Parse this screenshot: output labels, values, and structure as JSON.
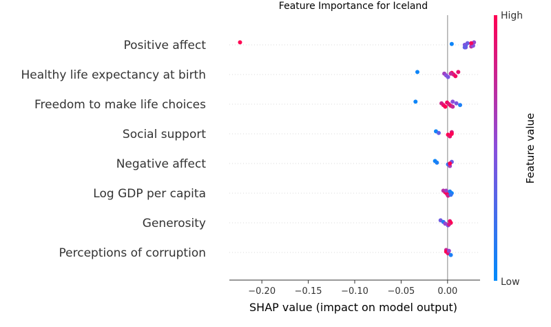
{
  "chart_data": {
    "type": "scatter",
    "title": "Feature Importance for Iceland",
    "xlabel": "SHAP value (impact on model output)",
    "xlim": [
      -0.235,
      0.035
    ],
    "x_ticks": [
      -0.2,
      -0.15,
      -0.1,
      -0.05,
      0.0
    ],
    "x_tick_labels": [
      "−0.20",
      "−0.15",
      "−0.10",
      "−0.05",
      "0.00"
    ],
    "grid": false,
    "legend": "colorbar-right",
    "colorbar": {
      "label": "Feature value",
      "high_label": "High",
      "low_label": "Low",
      "low_color": "#008bfb",
      "mid_color": "#8a4fdc",
      "high_color": "#ff0052"
    },
    "features": [
      {
        "name": "Positive affect",
        "points": [
          {
            "x": -0.2235,
            "v": 1.0
          },
          {
            "x": 0.0045,
            "v": 0.05
          },
          {
            "x": 0.0195,
            "v": 0.05
          },
          {
            "x": 0.0195,
            "v": 0.45
          },
          {
            "x": 0.0215,
            "v": 0.4
          },
          {
            "x": 0.0185,
            "v": 0.45
          },
          {
            "x": 0.0255,
            "v": 0.7
          },
          {
            "x": 0.0285,
            "v": 0.55
          },
          {
            "x": 0.0265,
            "v": 0.65
          },
          {
            "x": 0.0275,
            "v": 0.5
          },
          {
            "x": 0.0185,
            "v": 0.35
          },
          {
            "x": 0.0255,
            "v": 0.95
          }
        ]
      },
      {
        "name": "Healthy life expectancy at birth",
        "points": [
          {
            "x": -0.0325,
            "v": 0.05
          },
          {
            "x": -0.0035,
            "v": 0.6
          },
          {
            "x": -0.0015,
            "v": 0.5
          },
          {
            "x": 0.0005,
            "v": 0.45
          },
          {
            "x": 0.0045,
            "v": 1.0
          },
          {
            "x": 0.0065,
            "v": 0.85
          },
          {
            "x": 0.0085,
            "v": 0.95
          },
          {
            "x": 0.0115,
            "v": 0.9
          },
          {
            "x": 0.0035,
            "v": 0.75
          }
        ]
      },
      {
        "name": "Freedom to make life choices",
        "points": [
          {
            "x": -0.0345,
            "v": 0.05
          },
          {
            "x": -0.0065,
            "v": 0.8
          },
          {
            "x": -0.0045,
            "v": 0.9
          },
          {
            "x": -0.0025,
            "v": 1.0
          },
          {
            "x": -0.0005,
            "v": 0.95
          },
          {
            "x": 0.0015,
            "v": 0.85
          },
          {
            "x": 0.0035,
            "v": 0.9
          },
          {
            "x": 0.0055,
            "v": 0.5
          },
          {
            "x": 0.0095,
            "v": 0.45
          },
          {
            "x": 0.0135,
            "v": 0.1
          },
          {
            "x": 0.0055,
            "v": 0.75
          }
        ]
      },
      {
        "name": "Social support",
        "points": [
          {
            "x": -0.0125,
            "v": 0.05
          },
          {
            "x": -0.0095,
            "v": 0.35
          },
          {
            "x": 0.0005,
            "v": 1.0
          },
          {
            "x": 0.0025,
            "v": 0.9
          },
          {
            "x": 0.0045,
            "v": 0.85
          },
          {
            "x": 0.0045,
            "v": 1.0
          }
        ]
      },
      {
        "name": "Negative affect",
        "points": [
          {
            "x": -0.0135,
            "v": 0.05
          },
          {
            "x": -0.0115,
            "v": 0.1
          },
          {
            "x": 0.0005,
            "v": 0.2
          },
          {
            "x": 0.0025,
            "v": 0.6
          },
          {
            "x": 0.0045,
            "v": 0.4
          },
          {
            "x": 0.0025,
            "v": 1.0
          }
        ]
      },
      {
        "name": "Log GDP per capita",
        "points": [
          {
            "x": -0.0045,
            "v": 0.7
          },
          {
            "x": -0.0025,
            "v": 0.9
          },
          {
            "x": -0.0005,
            "v": 1.0
          },
          {
            "x": 0.0005,
            "v": 0.8
          },
          {
            "x": 0.0025,
            "v": 0.1
          },
          {
            "x": 0.0045,
            "v": 0.05
          },
          {
            "x": 0.0035,
            "v": 0.2
          },
          {
            "x": -0.0015,
            "v": 0.6
          }
        ]
      },
      {
        "name": "Generosity",
        "points": [
          {
            "x": -0.0075,
            "v": 0.4
          },
          {
            "x": -0.0045,
            "v": 0.15
          },
          {
            "x": -0.0025,
            "v": 0.55
          },
          {
            "x": 0.0005,
            "v": 0.45
          },
          {
            "x": 0.0025,
            "v": 0.9
          },
          {
            "x": 0.0035,
            "v": 1.0
          },
          {
            "x": 0.0015,
            "v": 0.8
          }
        ]
      },
      {
        "name": "Perceptions of corruption",
        "points": [
          {
            "x": -0.0015,
            "v": 0.75
          },
          {
            "x": -0.0015,
            "v": 1.0
          },
          {
            "x": 0.0005,
            "v": 0.9
          },
          {
            "x": 0.0035,
            "v": 0.1
          },
          {
            "x": 0.0015,
            "v": 0.55
          }
        ]
      }
    ]
  }
}
